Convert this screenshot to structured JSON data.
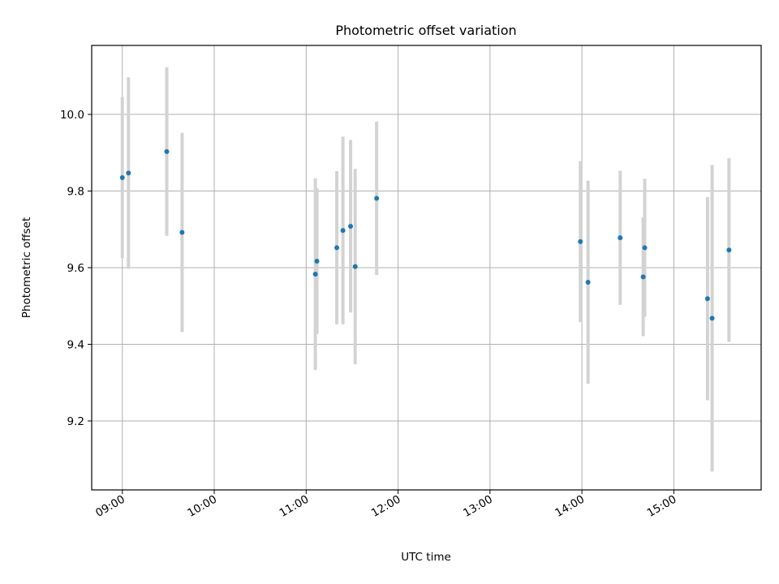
{
  "chart_data": {
    "type": "scatter",
    "title": "Photometric offset variation",
    "xlabel": "UTC time",
    "ylabel": "Photometric offset",
    "x_tick_labels": [
      "09:00",
      "10:00",
      "11:00",
      "12:00",
      "13:00",
      "14:00",
      "15:00"
    ],
    "y_tick_labels": [
      "9.2",
      "9.4",
      "9.6",
      "9.8",
      "10.0"
    ],
    "y_ticks": [
      9.2,
      9.4,
      9.6,
      9.8,
      10.0
    ],
    "xlim": [
      "08:40",
      "15:57"
    ],
    "ylim": [
      9.02,
      10.18
    ],
    "grid": true,
    "marker_color": "#1f77b4",
    "errorbar_color": "#d3d3d3",
    "points": [
      {
        "x": "09:00",
        "y": 9.835,
        "err": 0.21
      },
      {
        "x": "09:04",
        "y": 9.847,
        "err": 0.25
      },
      {
        "x": "09:29",
        "y": 9.903,
        "err": 0.22
      },
      {
        "x": "09:39",
        "y": 9.692,
        "err": 0.26
      },
      {
        "x": "11:06",
        "y": 9.583,
        "err": 0.25
      },
      {
        "x": "11:07",
        "y": 9.617,
        "err": 0.19
      },
      {
        "x": "11:20",
        "y": 9.652,
        "err": 0.2
      },
      {
        "x": "11:24",
        "y": 9.697,
        "err": 0.245
      },
      {
        "x": "11:29",
        "y": 9.708,
        "err": 0.225
      },
      {
        "x": "11:32",
        "y": 9.603,
        "err": 0.255
      },
      {
        "x": "11:46",
        "y": 9.781,
        "err": 0.2
      },
      {
        "x": "13:59",
        "y": 9.668,
        "err": 0.21
      },
      {
        "x": "14:04",
        "y": 9.562,
        "err": 0.265
      },
      {
        "x": "14:25",
        "y": 9.678,
        "err": 0.175
      },
      {
        "x": "14:40",
        "y": 9.576,
        "err": 0.155
      },
      {
        "x": "14:41",
        "y": 9.652,
        "err": 0.18
      },
      {
        "x": "15:22",
        "y": 9.519,
        "err": 0.265
      },
      {
        "x": "15:25",
        "y": 9.468,
        "err": 0.4
      },
      {
        "x": "15:36",
        "y": 9.646,
        "err": 0.24
      }
    ]
  }
}
